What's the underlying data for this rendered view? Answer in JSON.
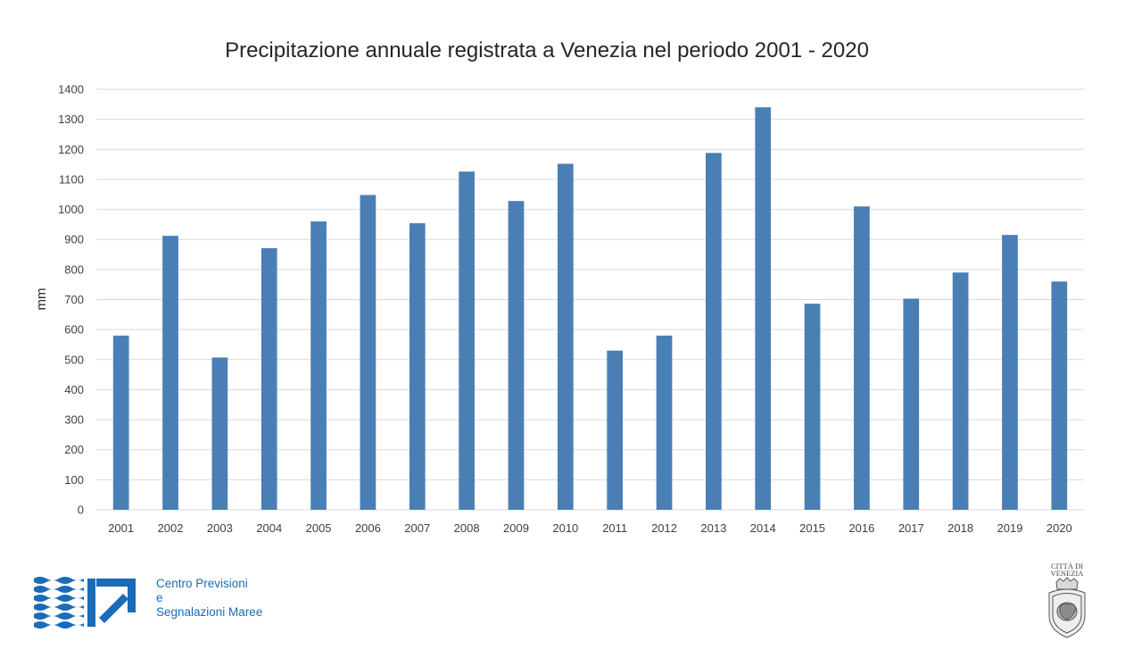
{
  "chart_data": {
    "type": "bar",
    "title": "Precipitazione annuale registrata a Venezia nel periodo 2001 - 2020",
    "xlabel": "",
    "ylabel": "mm",
    "ylim": [
      0,
      1400
    ],
    "yticks": [
      0,
      100,
      200,
      300,
      400,
      500,
      600,
      700,
      800,
      900,
      1000,
      1100,
      1200,
      1300,
      1400
    ],
    "grid": true,
    "legend": "none",
    "categories": [
      "2001",
      "2002",
      "2003",
      "2004",
      "2005",
      "2006",
      "2007",
      "2008",
      "2009",
      "2010",
      "2011",
      "2012",
      "2013",
      "2014",
      "2015",
      "2016",
      "2017",
      "2018",
      "2019",
      "2020"
    ],
    "values": [
      580,
      912,
      507,
      871,
      960,
      1048,
      954,
      1126,
      1028,
      1152,
      530,
      580,
      1188,
      1340,
      686,
      1010,
      703,
      790,
      915,
      760
    ],
    "bar_color": "#4a7fb5"
  },
  "footer": {
    "org_lines": [
      "Centro Previsioni",
      "e",
      "Segnalazioni Maree"
    ],
    "org_color": "#1a6bb8",
    "logo_icon": "cpsm-waves-arrow-logo",
    "emblem_icon": "citta-di-venezia-emblem",
    "emblem_text": "CITTÀ DI VENEZIA"
  }
}
